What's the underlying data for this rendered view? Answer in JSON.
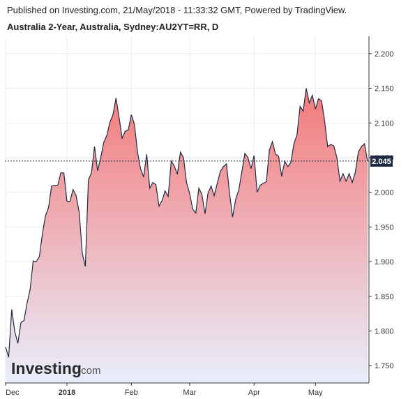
{
  "header": {
    "published": "Published on Investing.com, 21/May/2018 - 11:33:32 GMT, Powered by TradingView.",
    "title": "Australia 2-Year, Australia, Sydney:AU2YT=RR, D"
  },
  "logo": {
    "main": "Investing",
    "suffix": ".com"
  },
  "colors": {
    "line": "#1f2a44",
    "fill_top": "#f37a7a",
    "fill_bottom": "#e8eefb",
    "grid": "#ececec",
    "axis": "#333333",
    "last_label_bg": "#1f2a44",
    "last_label_text": "#ffffff"
  },
  "chart_data": {
    "type": "area",
    "ylim": [
      1.725,
      2.225
    ],
    "yticks": [
      "1.750",
      "1.800",
      "1.850",
      "1.900",
      "1.950",
      "2.000",
      "2.050",
      "2.100",
      "2.150",
      "2.200"
    ],
    "xticks": [
      {
        "label": "Dec",
        "index": 0,
        "bold": false
      },
      {
        "label": "2018",
        "index": 20,
        "bold": true
      },
      {
        "label": "Feb",
        "index": 41,
        "bold": false
      },
      {
        "label": "Mar",
        "index": 60,
        "bold": false
      },
      {
        "label": "Apr",
        "index": 81,
        "bold": false
      },
      {
        "label": "May",
        "index": 101,
        "bold": false
      }
    ],
    "last_value": "2.045",
    "last_value_num": 2.045,
    "values": [
      1.777,
      1.762,
      1.831,
      1.799,
      1.782,
      1.812,
      1.815,
      1.84,
      1.86,
      1.901,
      1.9,
      1.907,
      1.94,
      1.966,
      1.978,
      2.009,
      2.01,
      2.01,
      2.028,
      2.028,
      1.987,
      1.987,
      2.004,
      1.995,
      1.971,
      1.912,
      1.893,
      2.018,
      2.028,
      2.066,
      2.031,
      2.05,
      2.072,
      2.082,
      2.101,
      2.112,
      2.136,
      2.108,
      2.078,
      2.088,
      2.09,
      2.112,
      2.098,
      2.058,
      2.034,
      2.022,
      2.055,
      2.006,
      2.014,
      2.011,
      1.98,
      1.988,
      2.002,
      1.994,
      2.045,
      2.038,
      2.026,
      2.058,
      2.05,
      2.014,
      1.998,
      1.976,
      1.97,
      2.006,
      1.997,
      1.969,
      1.999,
      2.009,
      1.995,
      2.013,
      2.03,
      2.037,
      2.041,
      1.999,
      1.964,
      1.99,
      2.003,
      2.029,
      2.056,
      2.05,
      2.034,
      2.053,
      2.0,
      2.01,
      2.013,
      2.015,
      2.061,
      2.073,
      2.055,
      2.052,
      2.023,
      2.045,
      2.037,
      2.043,
      2.07,
      2.083,
      2.124,
      2.117,
      2.15,
      2.129,
      2.14,
      2.12,
      2.135,
      2.132,
      2.103,
      2.066,
      2.069,
      2.067,
      2.05,
      2.016,
      2.027,
      2.016,
      2.027,
      2.014,
      2.029,
      2.058,
      2.066,
      2.07,
      2.045
    ]
  }
}
